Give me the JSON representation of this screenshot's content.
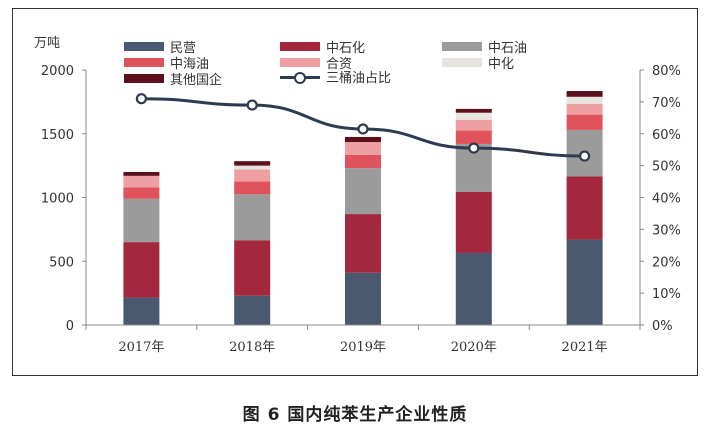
{
  "caption": "图 6  国内纯苯生产企业性质",
  "chart_data": {
    "type": "bar",
    "stacked": true,
    "left_axis_unit": "万吨",
    "categories": [
      "2017年",
      "2018年",
      "2019年",
      "2020年",
      "2021年"
    ],
    "ylim": [
      0,
      2000
    ],
    "yticks": [
      "0",
      "500",
      "1000",
      "1500",
      "2000"
    ],
    "y2lim": [
      0,
      80
    ],
    "y2ticks": [
      "0%",
      "10%",
      "20%",
      "30%",
      "40%",
      "50%",
      "60%",
      "70%",
      "80%"
    ],
    "series": [
      {
        "name": "民营",
        "color": "#4a5870",
        "values": [
          215,
          230,
          410,
          565,
          670
        ]
      },
      {
        "name": "中石化",
        "color": "#a3273d",
        "values": [
          435,
          435,
          460,
          480,
          495
        ]
      },
      {
        "name": "中石油",
        "color": "#9b9b9b",
        "values": [
          340,
          360,
          360,
          375,
          365
        ]
      },
      {
        "name": "中海油",
        "color": "#e0525c",
        "values": [
          90,
          100,
          105,
          105,
          120
        ]
      },
      {
        "name": "合资",
        "color": "#ee9fa2",
        "values": [
          90,
          95,
          100,
          85,
          85
        ]
      },
      {
        "name": "中化",
        "color": "#e7e4e0",
        "values": [
          0,
          30,
          0,
          55,
          55
        ]
      },
      {
        "name": "其他国企",
        "color": "#5c0f1d",
        "values": [
          30,
          35,
          40,
          30,
          45
        ]
      }
    ],
    "line": {
      "name": "三桶油占比",
      "color": "#2e3a4f",
      "values": [
        71,
        69,
        61.5,
        55.5,
        53
      ]
    },
    "legend_position": "top"
  }
}
